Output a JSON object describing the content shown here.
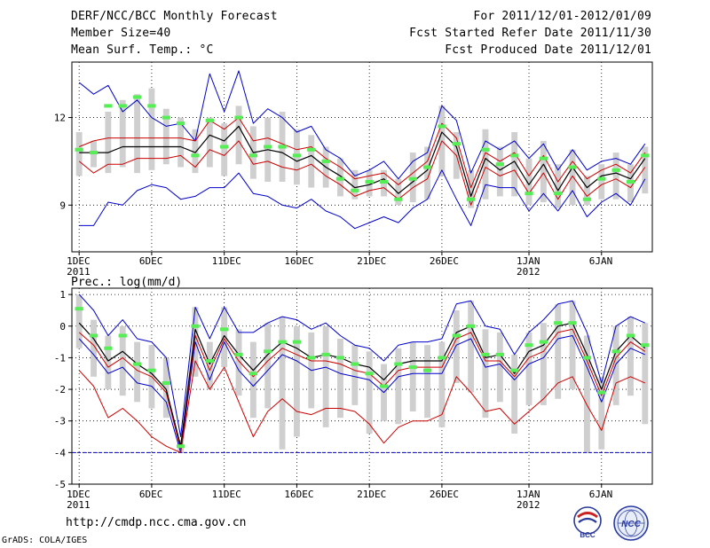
{
  "header": {
    "title": "DERF/NCC/BCC Monthly Forecast",
    "member_size": "Member Size=40",
    "variable": "Mean Surf. Temp.: °C",
    "forecast_period": "For 2011/12/01-2012/01/09",
    "fcst_started": "Fcst Started Refer Date 2011/11/30",
    "fcst_produced": "Fcst Produced Date 2011/12/01"
  },
  "footer": {
    "url": "http://cmdp.ncc.cma.gov.cn",
    "credit": "GrADS: COLA/IGES",
    "logo_bcc": "BCC",
    "logo_ncc": "NCC"
  },
  "colors": {
    "box": "#cfcfcf",
    "member_mark": "#55ee55",
    "mean_line": "#000000",
    "inner_band": "#cc0000",
    "outer_band": "#0000cc",
    "dashed": "#0000cc",
    "grid": "#000000"
  },
  "chart_data": [
    {
      "type": "box",
      "title": "Mean Surf. Temp.: °C",
      "xlabel": "",
      "ylabel": "°C",
      "x_ticks": [
        {
          "day": 1,
          "label": "1DEC",
          "sub": "2011"
        },
        {
          "day": 6,
          "label": "6DEC",
          "sub": ""
        },
        {
          "day": 11,
          "label": "11DEC",
          "sub": ""
        },
        {
          "day": 16,
          "label": "16DEC",
          "sub": ""
        },
        {
          "day": 21,
          "label": "21DEC",
          "sub": ""
        },
        {
          "day": 26,
          "label": "26DEC",
          "sub": ""
        },
        {
          "day": 32,
          "label": "1JAN",
          "sub": "2012"
        },
        {
          "day": 37,
          "label": "6JAN",
          "sub": ""
        }
      ],
      "xlim": [
        0.5,
        40.5
      ],
      "ylim": [
        7.4,
        13.9
      ],
      "y_ticks": [
        9,
        12
      ],
      "days": [
        1,
        2,
        3,
        4,
        5,
        6,
        7,
        8,
        9,
        10,
        11,
        12,
        13,
        14,
        15,
        16,
        17,
        18,
        19,
        20,
        21,
        22,
        23,
        24,
        25,
        26,
        27,
        28,
        29,
        30,
        31,
        32,
        33,
        34,
        35,
        36,
        37,
        38,
        39,
        40
      ],
      "mean": [
        10.8,
        10.8,
        10.8,
        11.0,
        11.0,
        11.0,
        11.0,
        11.0,
        10.8,
        11.4,
        11.2,
        11.7,
        10.8,
        10.9,
        10.8,
        10.5,
        10.7,
        10.3,
        10.0,
        9.6,
        9.7,
        9.9,
        9.4,
        9.8,
        10.2,
        11.5,
        11.0,
        9.3,
        10.6,
        10.2,
        10.5,
        9.7,
        10.4,
        9.5,
        10.3,
        9.6,
        10.0,
        10.1,
        9.9,
        10.6
      ],
      "inner_hi": [
        11.0,
        11.2,
        11.3,
        11.3,
        11.3,
        11.3,
        11.3,
        11.3,
        11.2,
        11.9,
        11.6,
        12.0,
        11.2,
        11.3,
        11.1,
        10.9,
        11.0,
        10.6,
        10.3,
        9.9,
        10.0,
        10.1,
        9.7,
        10.1,
        10.5,
        11.8,
        11.3,
        9.6,
        10.8,
        10.5,
        10.8,
        10.0,
        10.7,
        9.8,
        10.5,
        9.9,
        10.2,
        10.4,
        10.1,
        10.8
      ],
      "inner_lo": [
        10.5,
        10.1,
        10.4,
        10.4,
        10.6,
        10.6,
        10.6,
        10.7,
        10.3,
        10.9,
        10.7,
        11.2,
        10.4,
        10.5,
        10.3,
        10.2,
        10.4,
        10.0,
        9.7,
        9.3,
        9.5,
        9.6,
        9.2,
        9.6,
        9.9,
        11.2,
        10.7,
        9.0,
        10.3,
        10.0,
        10.2,
        9.4,
        10.1,
        9.2,
        10.0,
        9.3,
        9.7,
        9.9,
        9.6,
        10.3
      ],
      "outer_hi": [
        13.2,
        12.8,
        13.1,
        12.2,
        12.6,
        12.0,
        11.7,
        11.8,
        11.2,
        13.5,
        12.2,
        13.6,
        11.8,
        12.3,
        12.0,
        11.5,
        11.7,
        10.9,
        10.6,
        10.0,
        10.2,
        10.5,
        9.9,
        10.5,
        10.8,
        12.4,
        11.9,
        10.1,
        11.2,
        10.9,
        11.2,
        10.6,
        11.1,
        10.2,
        10.9,
        10.2,
        10.5,
        10.6,
        10.4,
        11.1
      ],
      "outer_lo": [
        8.3,
        8.3,
        9.1,
        9.0,
        9.5,
        9.7,
        9.6,
        9.2,
        9.3,
        9.6,
        9.6,
        10.1,
        9.4,
        9.3,
        9.0,
        8.9,
        9.2,
        8.8,
        8.6,
        8.2,
        8.4,
        8.6,
        8.4,
        8.9,
        9.2,
        10.2,
        9.2,
        8.3,
        9.7,
        9.6,
        9.6,
        8.8,
        9.4,
        8.8,
        9.5,
        8.6,
        9.1,
        9.4,
        9.0,
        9.9
      ],
      "member": [
        10.9,
        10.8,
        12.4,
        12.4,
        12.7,
        12.4,
        12.0,
        11.8,
        10.7,
        11.9,
        11.0,
        12.0,
        10.7,
        11.0,
        11.0,
        10.7,
        10.9,
        10.5,
        9.9,
        9.5,
        9.8,
        9.8,
        9.2,
        9.9,
        10.3,
        11.7,
        11.1,
        9.2,
        10.9,
        10.4,
        10.7,
        9.4,
        10.6,
        9.4,
        10.3,
        9.2,
        9.9,
        10.2,
        9.8,
        10.7
      ],
      "box_hi": [
        11.5,
        11.2,
        12.2,
        12.6,
        12.8,
        13.0,
        12.3,
        12.0,
        11.6,
        12.0,
        11.8,
        12.4,
        11.7,
        12.0,
        12.2,
        11.6,
        11.4,
        11.0,
        10.6,
        10.2,
        10.2,
        10.2,
        9.9,
        10.8,
        11.0,
        12.4,
        11.5,
        10.2,
        11.6,
        11.0,
        11.5,
        10.6,
        11.2,
        10.4,
        10.9,
        10.0,
        10.4,
        10.8,
        10.4,
        11.0
      ],
      "box_lo": [
        10.0,
        10.3,
        10.1,
        10.3,
        10.1,
        10.2,
        10.4,
        10.3,
        10.1,
        10.3,
        10.0,
        10.4,
        9.9,
        9.8,
        9.8,
        9.7,
        9.6,
        9.6,
        9.3,
        9.2,
        9.3,
        9.3,
        9.0,
        9.1,
        9.2,
        10.0,
        9.9,
        8.9,
        9.2,
        9.3,
        9.3,
        9.0,
        9.1,
        8.9,
        9.0,
        9.0,
        9.2,
        9.2,
        9.1,
        9.4
      ]
    },
    {
      "type": "box",
      "title": "Prec.: log(mm/d)",
      "xlabel": "",
      "ylabel": "log(mm/d)",
      "x_ticks": [
        {
          "day": 1,
          "label": "1DEC",
          "sub": "2011"
        },
        {
          "day": 6,
          "label": "6DEC",
          "sub": ""
        },
        {
          "day": 11,
          "label": "11DEC",
          "sub": ""
        },
        {
          "day": 16,
          "label": "16DEC",
          "sub": ""
        },
        {
          "day": 21,
          "label": "21DEC",
          "sub": ""
        },
        {
          "day": 26,
          "label": "26DEC",
          "sub": ""
        },
        {
          "day": 32,
          "label": "1JAN",
          "sub": "2012"
        },
        {
          "day": 37,
          "label": "6JAN",
          "sub": ""
        }
      ],
      "xlim": [
        0.5,
        40.5
      ],
      "ylim": [
        -5,
        1.2
      ],
      "y_ticks": [
        -5,
        -4,
        -3,
        -2,
        -1,
        0,
        1
      ],
      "baseline": -4,
      "days": [
        1,
        2,
        3,
        4,
        5,
        6,
        7,
        8,
        9,
        10,
        11,
        12,
        13,
        14,
        15,
        16,
        17,
        18,
        19,
        20,
        21,
        22,
        23,
        24,
        25,
        26,
        27,
        28,
        29,
        30,
        31,
        32,
        33,
        34,
        35,
        36,
        37,
        38,
        39,
        40
      ],
      "mean": [
        0.1,
        -0.4,
        -1.1,
        -0.8,
        -1.2,
        -1.5,
        -2.0,
        -3.8,
        -0.1,
        -1.2,
        -0.3,
        -0.9,
        -1.4,
        -0.9,
        -0.5,
        -0.7,
        -1.0,
        -0.9,
        -1.0,
        -1.2,
        -1.3,
        -1.7,
        -1.2,
        -1.1,
        -1.1,
        -1.1,
        -0.2,
        0.0,
        -1.0,
        -0.9,
        -1.5,
        -0.8,
        -0.6,
        0.0,
        0.1,
        -0.9,
        -2.0,
        -0.8,
        -0.3,
        -0.7
      ],
      "inner_hi": [
        -0.2,
        -0.6,
        -1.3,
        -1.0,
        -1.4,
        -1.6,
        -2.1,
        -3.9,
        -0.3,
        -1.4,
        -0.4,
        -1.1,
        -1.6,
        -1.1,
        -0.7,
        -0.9,
        -1.1,
        -1.1,
        -1.2,
        -1.4,
        -1.5,
        -1.9,
        -1.4,
        -1.3,
        -1.3,
        -1.3,
        -0.4,
        -0.2,
        -1.1,
        -1.1,
        -1.6,
        -1.0,
        -0.8,
        -0.2,
        -0.1,
        -1.1,
        -2.2,
        -1.0,
        -0.5,
        -0.8
      ],
      "inner_lo": [
        -1.4,
        -1.9,
        -2.9,
        -2.6,
        -3.0,
        -3.5,
        -3.8,
        -4.0,
        -1.1,
        -2.0,
        -1.3,
        -2.4,
        -3.5,
        -2.7,
        -2.3,
        -2.7,
        -2.8,
        -2.6,
        -2.6,
        -2.7,
        -3.1,
        -3.7,
        -3.2,
        -3.0,
        -3.0,
        -2.8,
        -1.6,
        -2.1,
        -2.7,
        -2.6,
        -3.1,
        -2.7,
        -2.3,
        -1.8,
        -1.6,
        -2.5,
        -3.3,
        -1.8,
        -1.6,
        -1.8
      ],
      "outer_hi": [
        1.0,
        0.5,
        -0.3,
        0.2,
        -0.4,
        -0.5,
        -1.0,
        -3.5,
        0.6,
        -0.4,
        0.6,
        -0.2,
        -0.2,
        0.1,
        0.3,
        0.2,
        -0.1,
        0.1,
        -0.3,
        -0.6,
        -0.7,
        -1.1,
        -0.6,
        -0.5,
        -0.5,
        -0.4,
        0.7,
        0.8,
        0.0,
        -0.1,
        -0.9,
        -0.2,
        0.2,
        0.7,
        0.8,
        -0.2,
        -1.8,
        0.0,
        0.3,
        0.1
      ],
      "outer_lo": [
        -0.4,
        -0.9,
        -1.5,
        -1.3,
        -1.8,
        -1.9,
        -2.4,
        -4.0,
        -0.5,
        -1.7,
        -0.5,
        -1.4,
        -1.9,
        -1.4,
        -0.9,
        -1.1,
        -1.4,
        -1.3,
        -1.5,
        -1.6,
        -1.7,
        -2.1,
        -1.6,
        -1.5,
        -1.5,
        -1.5,
        -0.6,
        -0.4,
        -1.3,
        -1.2,
        -1.7,
        -1.2,
        -1.0,
        -0.4,
        -0.3,
        -1.3,
        -2.4,
        -1.2,
        -0.7,
        -0.9
      ],
      "member": [
        0.55,
        -0.3,
        -0.7,
        -0.3,
        -1.2,
        -1.4,
        -1.8,
        -3.8,
        0.0,
        -1.1,
        -0.1,
        -0.9,
        -1.5,
        -0.8,
        -0.5,
        -0.5,
        -1.0,
        -0.9,
        -1.0,
        -1.2,
        -1.5,
        -1.9,
        -1.2,
        -1.3,
        -1.4,
        -1.0,
        -0.3,
        0.0,
        -0.9,
        -0.9,
        -1.4,
        -0.6,
        -0.5,
        0.1,
        0.1,
        -1.0,
        -2.1,
        -0.8,
        -0.3,
        -0.6
      ],
      "box_hi": [
        1.0,
        0.2,
        -0.3,
        0.0,
        -0.5,
        -0.6,
        -1.0,
        -3.6,
        0.6,
        -0.5,
        0.6,
        -0.1,
        -0.5,
        0.1,
        0.3,
        0.0,
        -0.2,
        0.0,
        -0.4,
        -0.6,
        -0.8,
        -1.2,
        -0.7,
        -0.5,
        -0.6,
        -0.5,
        0.5,
        0.8,
        -0.1,
        -0.2,
        -0.9,
        -0.2,
        0.1,
        0.7,
        0.8,
        -0.3,
        -1.6,
        0.0,
        0.3,
        0.1
      ],
      "box_lo": [
        -0.7,
        -1.6,
        -2.0,
        -2.2,
        -2.4,
        -2.6,
        -2.9,
        -4.0,
        -1.6,
        -2.0,
        -1.3,
        -2.2,
        -2.9,
        -2.6,
        -3.9,
        -3.5,
        -2.6,
        -3.2,
        -2.9,
        -2.5,
        -3.4,
        -3.0,
        -3.1,
        -2.7,
        -2.9,
        -3.2,
        -1.8,
        -2.1,
        -2.9,
        -2.4,
        -3.4,
        -2.5,
        -2.5,
        -2.3,
        -2.0,
        -4.0,
        -3.9,
        -2.5,
        -2.2,
        -3.1
      ]
    }
  ]
}
